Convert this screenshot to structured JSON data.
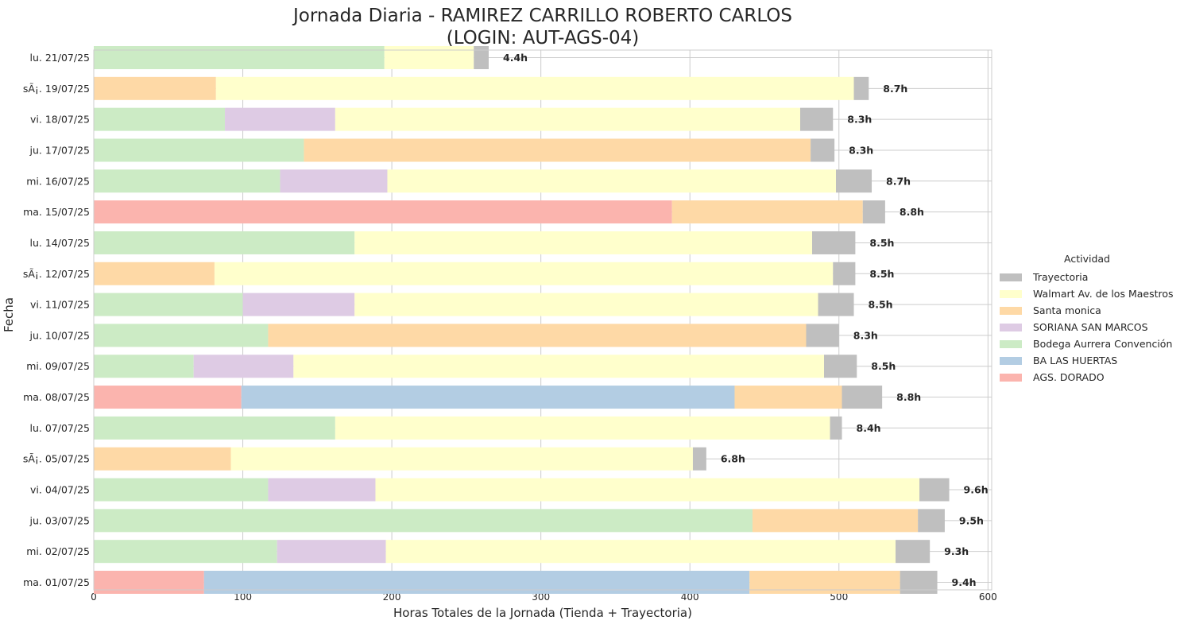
{
  "chart_data": {
    "type": "bar",
    "orientation": "horizontal",
    "stacked": true,
    "title_line1": "Jornada Diaria - RAMIREZ CARRILLO ROBERTO CARLOS",
    "title_line2": "(LOGIN: AUT-AGS-04)",
    "xlabel": "Horas Totales de la Jornada (Tienda + Trayectoria)",
    "ylabel": "Fecha",
    "xlim": [
      0,
      600
    ],
    "x_ticks": [
      "0",
      "100",
      "200",
      "300",
      "400",
      "500",
      "600"
    ],
    "grid": true,
    "legend_position": "right",
    "legend_title": "Actividad",
    "legend_entries": [
      {
        "name": "Trayectoria",
        "color": "#bfbfbf"
      },
      {
        "name": "Walmart Av. de los Maestros",
        "color": "#ffffcc"
      },
      {
        "name": "Santa monica",
        "color": "#fed9a6"
      },
      {
        "name": "SORIANA SAN MARCOS",
        "color": "#decbe4"
      },
      {
        "name": "Bodega Aurrera Convención",
        "color": "#ccebc5"
      },
      {
        "name": "BA LAS HUERTAS",
        "color": "#b3cde3"
      },
      {
        "name": "AGS. DORADO",
        "color": "#fbb4ae"
      }
    ],
    "colors": {
      "AGS. DORADO": "#fbb4ae",
      "BA LAS HUERTAS": "#b3cde3",
      "Bodega Aurrera Convención": "#ccebc5",
      "SORIANA SAN MARCOS": "#decbe4",
      "Santa monica": "#fed9a6",
      "Walmart Av. de los Maestros": "#ffffcc",
      "Trayectoria": "#bfbfbf"
    },
    "rows": [
      {
        "date": "lu. 21/07/25",
        "total_label": "4.4h",
        "segments": [
          {
            "name": "Bodega Aurrera Convención",
            "value": 195
          },
          {
            "name": "Walmart Av. de los Maestros",
            "value": 60
          },
          {
            "name": "Trayectoria",
            "value": 10
          }
        ]
      },
      {
        "date": "sÃ¡. 19/07/25",
        "total_label": "8.7h",
        "segments": [
          {
            "name": "Santa monica",
            "value": 82
          },
          {
            "name": "Walmart Av. de los Maestros",
            "value": 428
          },
          {
            "name": "Trayectoria",
            "value": 10
          }
        ]
      },
      {
        "date": "vi. 18/07/25",
        "total_label": "8.3h",
        "segments": [
          {
            "name": "Bodega Aurrera Convención",
            "value": 88
          },
          {
            "name": "SORIANA SAN MARCOS",
            "value": 74
          },
          {
            "name": "Walmart Av. de los Maestros",
            "value": 312
          },
          {
            "name": "Trayectoria",
            "value": 22
          }
        ]
      },
      {
        "date": "ju. 17/07/25",
        "total_label": "8.3h",
        "segments": [
          {
            "name": "Bodega Aurrera Convención",
            "value": 141
          },
          {
            "name": "Santa monica",
            "value": 340
          },
          {
            "name": "Trayectoria",
            "value": 16
          }
        ]
      },
      {
        "date": "mi. 16/07/25",
        "total_label": "8.7h",
        "segments": [
          {
            "name": "Bodega Aurrera Convención",
            "value": 125
          },
          {
            "name": "SORIANA SAN MARCOS",
            "value": 72
          },
          {
            "name": "Walmart Av. de los Maestros",
            "value": 301
          },
          {
            "name": "Trayectoria",
            "value": 24
          }
        ]
      },
      {
        "date": "ma. 15/07/25",
        "total_label": "8.8h",
        "segments": [
          {
            "name": "AGS. DORADO",
            "value": 388
          },
          {
            "name": "Santa monica",
            "value": 128
          },
          {
            "name": "Trayectoria",
            "value": 15
          }
        ]
      },
      {
        "date": "lu. 14/07/25",
        "total_label": "8.5h",
        "segments": [
          {
            "name": "Bodega Aurrera Convención",
            "value": 175
          },
          {
            "name": "Walmart Av. de los Maestros",
            "value": 307
          },
          {
            "name": "Trayectoria",
            "value": 29
          }
        ]
      },
      {
        "date": "sÃ¡. 12/07/25",
        "total_label": "8.5h",
        "segments": [
          {
            "name": "Santa monica",
            "value": 81
          },
          {
            "name": "Walmart Av. de los Maestros",
            "value": 415
          },
          {
            "name": "Trayectoria",
            "value": 15
          }
        ]
      },
      {
        "date": "vi. 11/07/25",
        "total_label": "8.5h",
        "segments": [
          {
            "name": "Bodega Aurrera Convención",
            "value": 100
          },
          {
            "name": "SORIANA SAN MARCOS",
            "value": 75
          },
          {
            "name": "Walmart Av. de los Maestros",
            "value": 311
          },
          {
            "name": "Trayectoria",
            "value": 24
          }
        ]
      },
      {
        "date": "ju. 10/07/25",
        "total_label": "8.3h",
        "segments": [
          {
            "name": "Bodega Aurrera Convención",
            "value": 117
          },
          {
            "name": "Santa monica",
            "value": 361
          },
          {
            "name": "Trayectoria",
            "value": 22
          }
        ]
      },
      {
        "date": "mi. 09/07/25",
        "total_label": "8.5h",
        "segments": [
          {
            "name": "Bodega Aurrera Convención",
            "value": 67
          },
          {
            "name": "SORIANA SAN MARCOS",
            "value": 67
          },
          {
            "name": "Walmart Av. de los Maestros",
            "value": 356
          },
          {
            "name": "Trayectoria",
            "value": 22
          }
        ]
      },
      {
        "date": "ma. 08/07/25",
        "total_label": "8.8h",
        "segments": [
          {
            "name": "AGS. DORADO",
            "value": 99
          },
          {
            "name": "BA LAS HUERTAS",
            "value": 331
          },
          {
            "name": "Santa monica",
            "value": 72
          },
          {
            "name": "Trayectoria",
            "value": 27
          }
        ]
      },
      {
        "date": "lu. 07/07/25",
        "total_label": "8.4h",
        "segments": [
          {
            "name": "Bodega Aurrera Convención",
            "value": 162
          },
          {
            "name": "Walmart Av. de los Maestros",
            "value": 332
          },
          {
            "name": "Trayectoria",
            "value": 8
          }
        ]
      },
      {
        "date": "sÃ¡. 05/07/25",
        "total_label": "6.8h",
        "segments": [
          {
            "name": "Santa monica",
            "value": 92
          },
          {
            "name": "Walmart Av. de los Maestros",
            "value": 310
          },
          {
            "name": "Trayectoria",
            "value": 9
          }
        ]
      },
      {
        "date": "vi. 04/07/25",
        "total_label": "9.6h",
        "segments": [
          {
            "name": "Bodega Aurrera Convención",
            "value": 117
          },
          {
            "name": "SORIANA SAN MARCOS",
            "value": 72
          },
          {
            "name": "Walmart Av. de los Maestros",
            "value": 365
          },
          {
            "name": "Trayectoria",
            "value": 20
          }
        ]
      },
      {
        "date": "ju. 03/07/25",
        "total_label": "9.5h",
        "segments": [
          {
            "name": "Bodega Aurrera Convención",
            "value": 442
          },
          {
            "name": "Santa monica",
            "value": 111
          },
          {
            "name": "Trayectoria",
            "value": 18
          }
        ]
      },
      {
        "date": "mi. 02/07/25",
        "total_label": "9.3h",
        "segments": [
          {
            "name": "Bodega Aurrera Convención",
            "value": 123
          },
          {
            "name": "SORIANA SAN MARCOS",
            "value": 73
          },
          {
            "name": "Walmart Av. de los Maestros",
            "value": 342
          },
          {
            "name": "Trayectoria",
            "value": 23
          }
        ]
      },
      {
        "date": "ma. 01/07/25",
        "total_label": "9.4h",
        "segments": [
          {
            "name": "AGS. DORADO",
            "value": 74
          },
          {
            "name": "BA LAS HUERTAS",
            "value": 366
          },
          {
            "name": "Santa monica",
            "value": 101
          },
          {
            "name": "Trayectoria",
            "value": 25
          }
        ]
      }
    ]
  }
}
